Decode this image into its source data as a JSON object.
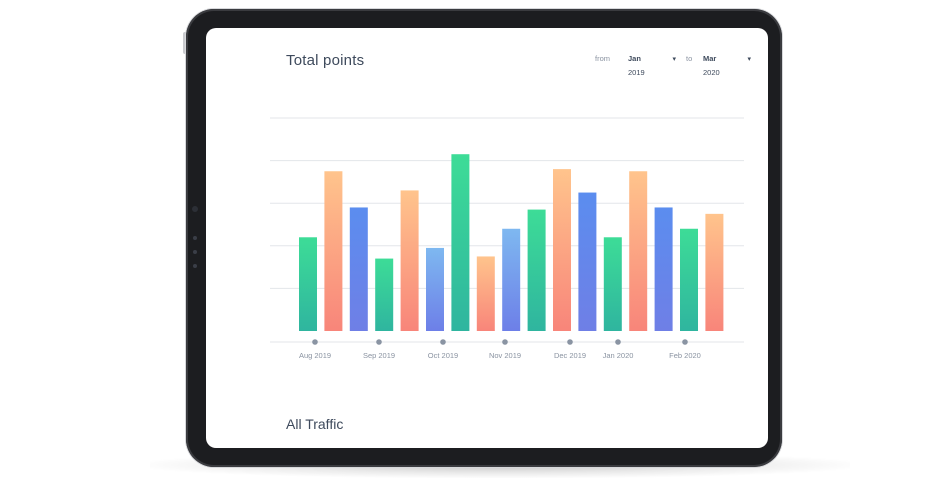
{
  "dashboard": {
    "title": "Total points",
    "from_label": "from",
    "to_label": "to",
    "from_month": "Jan",
    "from_year": "2019",
    "to_month": "Mar",
    "to_year": "2020",
    "caret": "▾",
    "section_title": "All Traffic"
  },
  "colors": {
    "green": [
      "#3ddc97",
      "#2fb59f"
    ],
    "orange": [
      "#ffc48c",
      "#f8857a"
    ],
    "blue": [
      "#5b8def",
      "#6f7fe6"
    ],
    "lightblue": [
      "#7eb8f0",
      "#6d7fe8"
    ],
    "grid": "#e3e6ea",
    "marker": "#8a94a3"
  },
  "chart_data": {
    "type": "bar",
    "title": "Total points",
    "xlabel": "",
    "ylabel": "",
    "ylim": [
      0,
      5
    ],
    "grid": true,
    "x_labels": [
      "Aug 2019",
      "Sep 2019",
      "Oct 2019",
      "Nov 2019",
      "Dec 2019",
      "Jan 2020",
      "Feb 2020"
    ],
    "bars": [
      {
        "value": 2.2,
        "color": "green"
      },
      {
        "value": 3.75,
        "color": "orange"
      },
      {
        "value": 2.9,
        "color": "blue"
      },
      {
        "value": 1.7,
        "color": "green"
      },
      {
        "value": 3.3,
        "color": "orange"
      },
      {
        "value": 1.95,
        "color": "lightblue"
      },
      {
        "value": 4.15,
        "color": "green"
      },
      {
        "value": 1.75,
        "color": "orange"
      },
      {
        "value": 2.4,
        "color": "lightblue"
      },
      {
        "value": 2.85,
        "color": "green"
      },
      {
        "value": 3.8,
        "color": "orange"
      },
      {
        "value": 3.25,
        "color": "blue"
      },
      {
        "value": 2.2,
        "color": "green"
      },
      {
        "value": 3.75,
        "color": "orange"
      },
      {
        "value": 2.9,
        "color": "blue"
      },
      {
        "value": 2.4,
        "color": "green"
      },
      {
        "value": 2.75,
        "color": "orange"
      }
    ]
  }
}
